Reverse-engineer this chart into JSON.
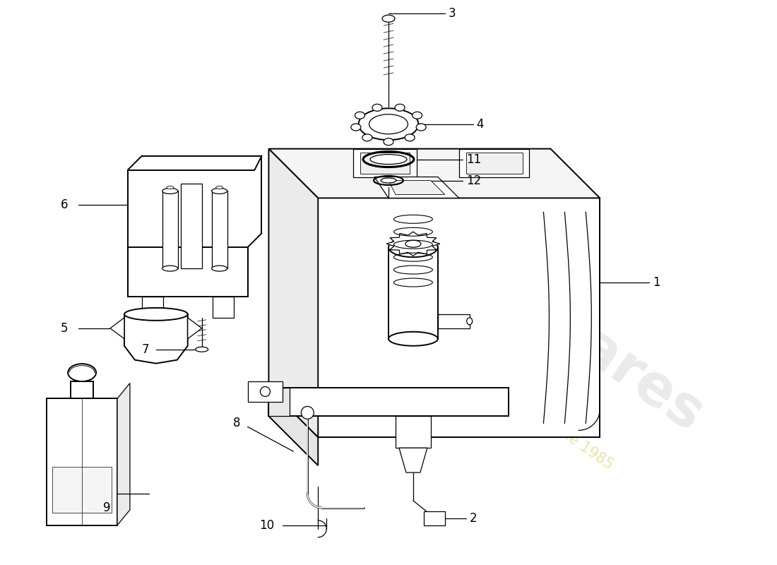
{
  "background_color": "#ffffff",
  "line_color": "#000000",
  "lw_main": 1.4,
  "lw_thin": 0.9,
  "lw_thick": 2.0,
  "label_fontsize": 12,
  "watermark1": "eurospares",
  "watermark2": "a passion for porsche 1985",
  "wm_color1": "#c8c8c8",
  "wm_color2": "#d4d080",
  "figsize": [
    11.0,
    8.0
  ],
  "dpi": 100
}
